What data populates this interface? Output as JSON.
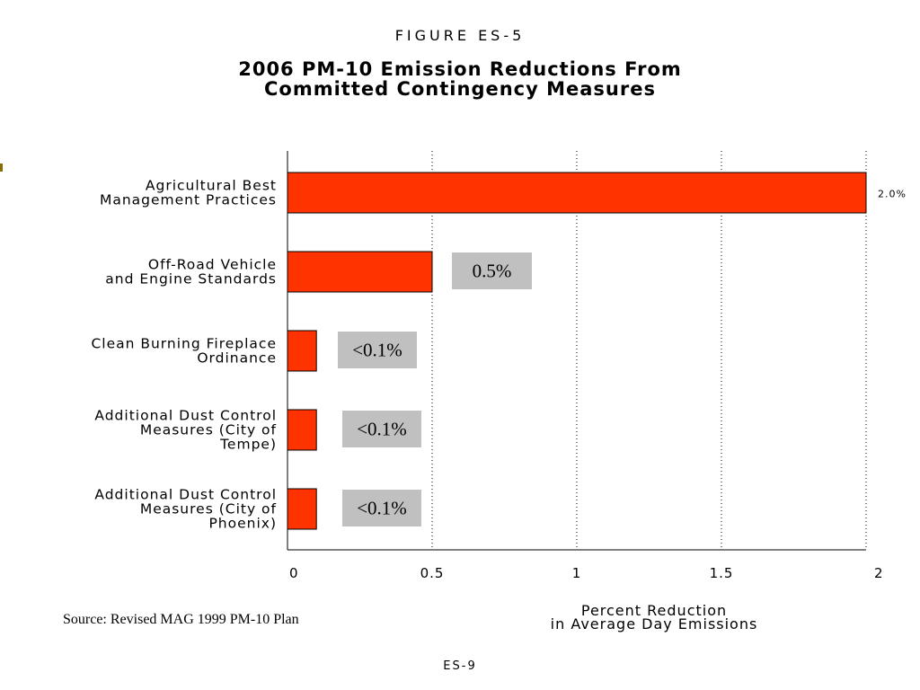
{
  "figure_label": "FIGURE ES-5",
  "title_lines": [
    "2006 PM-10 Emission Reductions From",
    "Committed Contingency Measures"
  ],
  "source": "Source:  Revised MAG 1999 PM-10 Plan",
  "page_number": "ES-9",
  "colors": {
    "bar": "#ff3300",
    "label_box": "#c0c0c0",
    "grid": "#000000"
  },
  "chart_data": {
    "type": "bar",
    "orientation": "horizontal",
    "categories": [
      [
        "Agricultural Best",
        "Management Practices"
      ],
      [
        "Off-Road Vehicle",
        "and Engine Standards"
      ],
      [
        "Clean Burning Fireplace",
        "Ordinance"
      ],
      [
        "Additional Dust Control",
        "Measures (City of",
        "Tempe)"
      ],
      [
        "Additional Dust Control",
        "Measures (City of",
        "Phoenix)"
      ]
    ],
    "values": [
      2.0,
      0.5,
      0.1,
      0.1,
      0.1
    ],
    "data_labels": [
      "2.0%",
      "0.5%",
      "<0.1%",
      "<0.1%",
      "<0.1%"
    ],
    "xlim": [
      0,
      2
    ],
    "x_ticks": [
      "0",
      "0.5",
      "1",
      "1.5",
      "2"
    ],
    "x_tick_values": [
      0,
      0.5,
      1,
      1.5,
      2
    ],
    "xlabel_lines": [
      "Percent Reduction",
      "in Average Day Emissions"
    ],
    "grid": "vertical dotted"
  }
}
